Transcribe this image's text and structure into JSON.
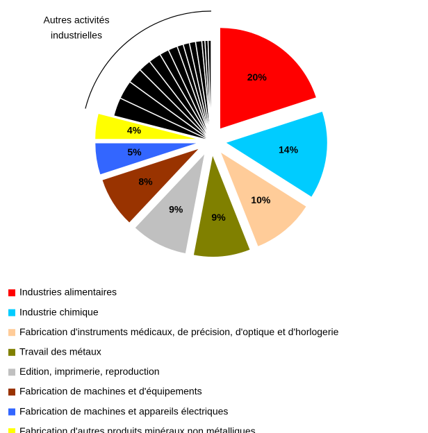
{
  "chart_data": {
    "type": "pie",
    "annotation": [
      "Autres activités",
      "industrielles"
    ],
    "categories": [
      "Industries alimentaires",
      "Industrie chimique",
      "Fabrication d'instruments médicaux, de précision, d'optique et d'horlogerie",
      "Travail des métaux",
      "Edition, imprimerie, reproduction",
      "Fabrication de machines et d'équipements",
      "Fabrication de machines et appareils électriques",
      "Fabrication d'autres produits minéraux non métalliques",
      null,
      null,
      null,
      null,
      null,
      null,
      null,
      null,
      null,
      null,
      null,
      null,
      null,
      null
    ],
    "values": [
      20,
      14,
      10,
      9,
      9,
      8,
      5,
      4,
      3,
      3,
      2.5,
      2,
      2,
      1.5,
      1.5,
      1,
      1,
      1,
      1,
      0.5,
      0.5,
      0.5
    ],
    "value_labels": [
      "20%",
      "14%",
      "10%",
      "9%",
      "9%",
      "8%",
      "5%",
      "4%",
      null,
      null,
      null,
      null,
      null,
      null,
      null,
      null,
      null,
      null,
      null,
      null,
      null,
      null
    ],
    "colors": [
      "#ff0000",
      "#00ccff",
      "#ffcc99",
      "#808000",
      "#c0c0c0",
      "#993300",
      "#3366ff",
      "#ffff00",
      "#000000",
      "#000000",
      "#000000",
      "#000000",
      "#000000",
      "#000000",
      "#000000",
      "#000000",
      "#000000",
      "#000000",
      "#000000",
      "#000000",
      "#000000",
      "#000000"
    ]
  }
}
